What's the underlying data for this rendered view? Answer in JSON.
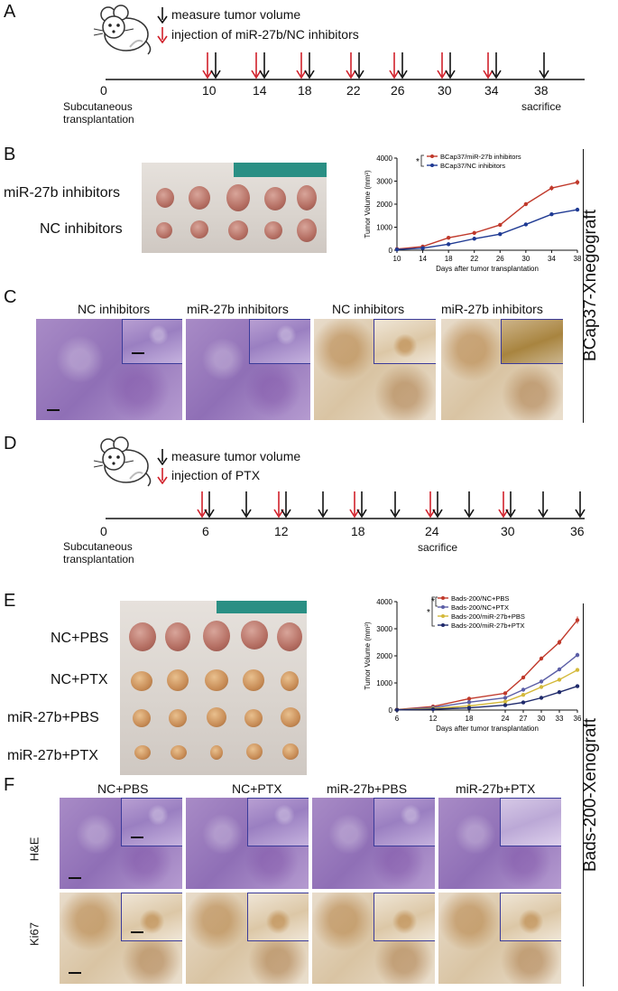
{
  "panels": {
    "A": "A",
    "B": "B",
    "C": "C",
    "D": "D",
    "E": "E",
    "F": "F"
  },
  "timelineA": {
    "legend_black": "measure tumor volume",
    "legend_red": "injection of miR-27b/NC inhibitors",
    "ticks": [
      "0",
      "10",
      "14",
      "18",
      "22",
      "26",
      "30",
      "34",
      "38"
    ],
    "start_label_line1": "Subcutaneous",
    "start_label_line2": "transplantation",
    "end_label": "sacrifice"
  },
  "timelineD": {
    "legend_black": "measure tumor volume",
    "legend_red": "injection of PTX",
    "ticks": [
      "0",
      "6",
      "12",
      "18",
      "24",
      "30",
      "36"
    ],
    "start_label_line1": "Subcutaneous",
    "start_label_line2": "transplantation",
    "end_label": "sacrifice"
  },
  "panelB": {
    "row1": "miR-27b inhibitors",
    "row2": "NC inhibitors"
  },
  "panelC": {
    "labels": [
      "NC inhibitors",
      "miR-27b inhibitors",
      "NC inhibitors",
      "miR-27b inhibitors"
    ]
  },
  "panelE": {
    "rows": [
      "NC+PBS",
      "NC+PTX",
      "miR-27b+PBS",
      "miR-27b+PTX"
    ]
  },
  "panelF": {
    "cols": [
      "NC+PBS",
      "NC+PTX",
      "miR-27b+PBS",
      "miR-27b+PTX"
    ],
    "row_he": "H&E",
    "row_ki": "Ki67"
  },
  "side_labels": {
    "top": "BCap37-Xnegograft",
    "bottom": "Bads-200-Xenograft"
  },
  "chart_data": [
    {
      "type": "line",
      "ylabel": "Tumor Volume (mm³)",
      "xlabel": "Days after tumor transplantation",
      "significance": "*",
      "x": [
        10,
        14,
        18,
        22,
        26,
        30,
        34,
        38
      ],
      "xlim": [
        10,
        38
      ],
      "ylim": [
        0,
        4000
      ],
      "yticks": [
        0,
        1000,
        2000,
        3000,
        4000
      ],
      "series": [
        {
          "name": "BCap37/miR-27b inhibitors",
          "color": "#c0392b",
          "values": [
            50,
            160,
            540,
            750,
            1100,
            2000,
            2700,
            2950
          ]
        },
        {
          "name": "BCap37/NC inhibitors",
          "color": "#1f3a93",
          "values": [
            30,
            90,
            260,
            500,
            700,
            1120,
            1560,
            1760
          ]
        }
      ]
    },
    {
      "type": "line",
      "ylabel": "Tumor Volume (mm³)",
      "xlabel": "Days after tumor transplantation",
      "significance": "*",
      "x": [
        6,
        12,
        18,
        24,
        27,
        30,
        33,
        36
      ],
      "xlim": [
        6,
        36
      ],
      "ylim": [
        0,
        4000
      ],
      "yticks": [
        0,
        1000,
        2000,
        3000,
        4000
      ],
      "series": [
        {
          "name": "Bads-200/NC+PBS",
          "color": "#c0392b",
          "values": [
            20,
            130,
            420,
            620,
            1200,
            1900,
            2500,
            3320
          ]
        },
        {
          "name": "Bads-200/NC+PTX",
          "color": "#5b5ea6",
          "values": [
            15,
            90,
            290,
            450,
            750,
            1050,
            1500,
            2030
          ]
        },
        {
          "name": "Bads-200/miR-27b+PBS",
          "color": "#d4b93a",
          "values": [
            10,
            60,
            150,
            310,
            560,
            850,
            1120,
            1480
          ]
        },
        {
          "name": "Bads-200/miR-27b+PTX",
          "color": "#1f2a6b",
          "values": [
            5,
            30,
            80,
            180,
            280,
            450,
            660,
            880
          ]
        }
      ]
    }
  ]
}
